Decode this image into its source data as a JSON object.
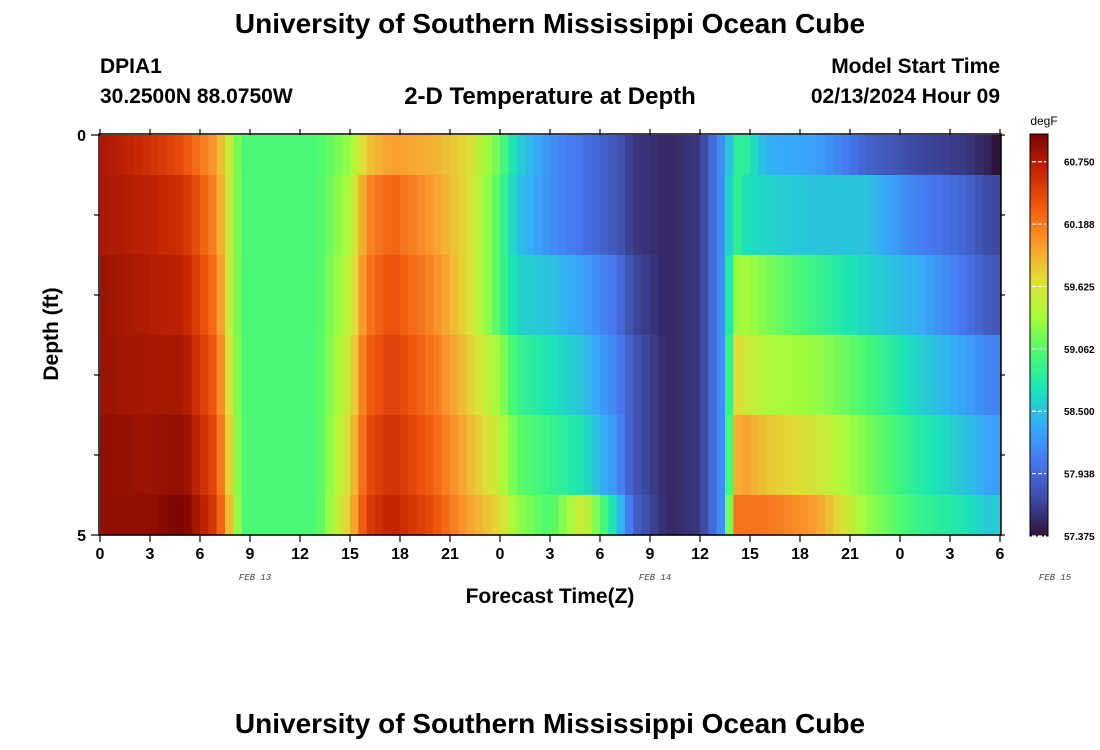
{
  "header": {
    "title": "University of Southern Mississippi Ocean Cube",
    "station": "DPIA1",
    "coordinates": "30.2500N  88.0750W",
    "chart_title": "2-D Temperature at Depth",
    "model_start_label": "Model Start Time",
    "model_start_value": "02/13/2024 Hour 09",
    "footer_title": "University of Southern Mississippi Ocean Cube"
  },
  "colormap": [
    "#7a0403",
    "#c42503",
    "#f0590e",
    "#fb9b2f",
    "#e1dd37",
    "#a5fc3c",
    "#4cf970",
    "#1ae4b6",
    "#36aaf9",
    "#4777ef",
    "#3e4aa2",
    "#30123b"
  ],
  "chart_data": {
    "type": "heatmap",
    "title": "2-D Temperature at Depth",
    "xlabel": "Forecast Time(Z)",
    "ylabel": "Depth (ft)",
    "x_tick_labels": [
      "0",
      "3",
      "6",
      "9",
      "12",
      "15",
      "18",
      "21",
      "0",
      "3",
      "6",
      "9",
      "12",
      "15",
      "18",
      "21",
      "0",
      "3",
      "6"
    ],
    "date_labels": [
      "FEB 13",
      "FEB 14",
      "FEB 15"
    ],
    "x_hours": [
      0,
      54
    ],
    "ylim": [
      0,
      5
    ],
    "y_tick_labels": [
      "0",
      "5"
    ],
    "colorbar": {
      "unit": "degF",
      "range": [
        57.375,
        61.0
      ],
      "tick_labels": [
        "60.750",
        "60.188",
        "59.625",
        "59.062",
        "58.500",
        "57.938",
        "57.375"
      ]
    },
    "hour_anchors": [
      0,
      3,
      5,
      7,
      7.8,
      8.5,
      10,
      13,
      15,
      16,
      17.5,
      20,
      22,
      24,
      25,
      27,
      29,
      31,
      32,
      34,
      36,
      37.5,
      38,
      38.2,
      38.5,
      40,
      43,
      46,
      49,
      52,
      53.5,
      54
    ],
    "depth_rows": [
      "0.0-0.5",
      "0.5-1.5",
      "1.5-2.5",
      "2.5-3.5",
      "3.5-4.5",
      "4.5-5.0"
    ],
    "temperature_profiles": [
      [
        60.8,
        60.6,
        60.4,
        60.0,
        59.5,
        59.0,
        59.0,
        59.0,
        59.3,
        59.8,
        60.0,
        59.9,
        59.7,
        59.1,
        58.6,
        58.2,
        58.0,
        57.8,
        57.6,
        57.5,
        57.6,
        58.3,
        58.7,
        58.8,
        58.9,
        58.4,
        58.3,
        57.9,
        57.7,
        57.6,
        57.45,
        57.2
      ],
      [
        60.8,
        60.7,
        60.6,
        60.1,
        59.5,
        59.0,
        59.0,
        59.0,
        59.4,
        60.1,
        60.3,
        60.0,
        59.7,
        59.0,
        58.5,
        58.2,
        58.0,
        57.8,
        57.6,
        57.5,
        57.6,
        58.3,
        58.9,
        58.9,
        58.7,
        58.6,
        58.5,
        58.5,
        58.1,
        57.9,
        57.7,
        57.7
      ],
      [
        60.85,
        60.75,
        60.7,
        60.2,
        59.5,
        59.0,
        59.0,
        59.0,
        59.5,
        60.2,
        60.4,
        60.1,
        59.7,
        59.0,
        58.6,
        58.5,
        58.3,
        58.0,
        57.7,
        57.5,
        57.6,
        58.3,
        59.2,
        59.3,
        59.4,
        59.2,
        58.9,
        58.6,
        58.4,
        58.0,
        57.8,
        57.8
      ],
      [
        60.85,
        60.8,
        60.8,
        60.3,
        59.6,
        59.0,
        59.0,
        59.0,
        59.6,
        60.3,
        60.5,
        60.2,
        59.8,
        59.3,
        58.9,
        58.7,
        58.5,
        58.1,
        57.8,
        57.5,
        57.6,
        58.3,
        59.5,
        59.7,
        59.6,
        59.4,
        59.3,
        59.0,
        58.6,
        58.3,
        58.1,
        58.1
      ],
      [
        60.9,
        60.85,
        60.9,
        60.4,
        59.7,
        59.0,
        59.0,
        59.0,
        59.7,
        60.4,
        60.6,
        60.3,
        59.9,
        59.5,
        59.1,
        58.9,
        58.7,
        58.2,
        57.8,
        57.5,
        57.6,
        58.3,
        59.7,
        59.9,
        60.0,
        59.8,
        59.6,
        59.2,
        58.8,
        58.5,
        58.3,
        58.3
      ],
      [
        60.9,
        60.9,
        61.0,
        60.5,
        59.8,
        59.0,
        59.0,
        59.0,
        59.8,
        60.5,
        60.7,
        60.4,
        60.0,
        59.7,
        59.3,
        59.0,
        59.6,
        58.6,
        57.9,
        57.5,
        57.6,
        58.3,
        60.1,
        60.2,
        60.2,
        60.2,
        60.0,
        59.3,
        58.9,
        58.7,
        58.5,
        58.6
      ]
    ]
  }
}
